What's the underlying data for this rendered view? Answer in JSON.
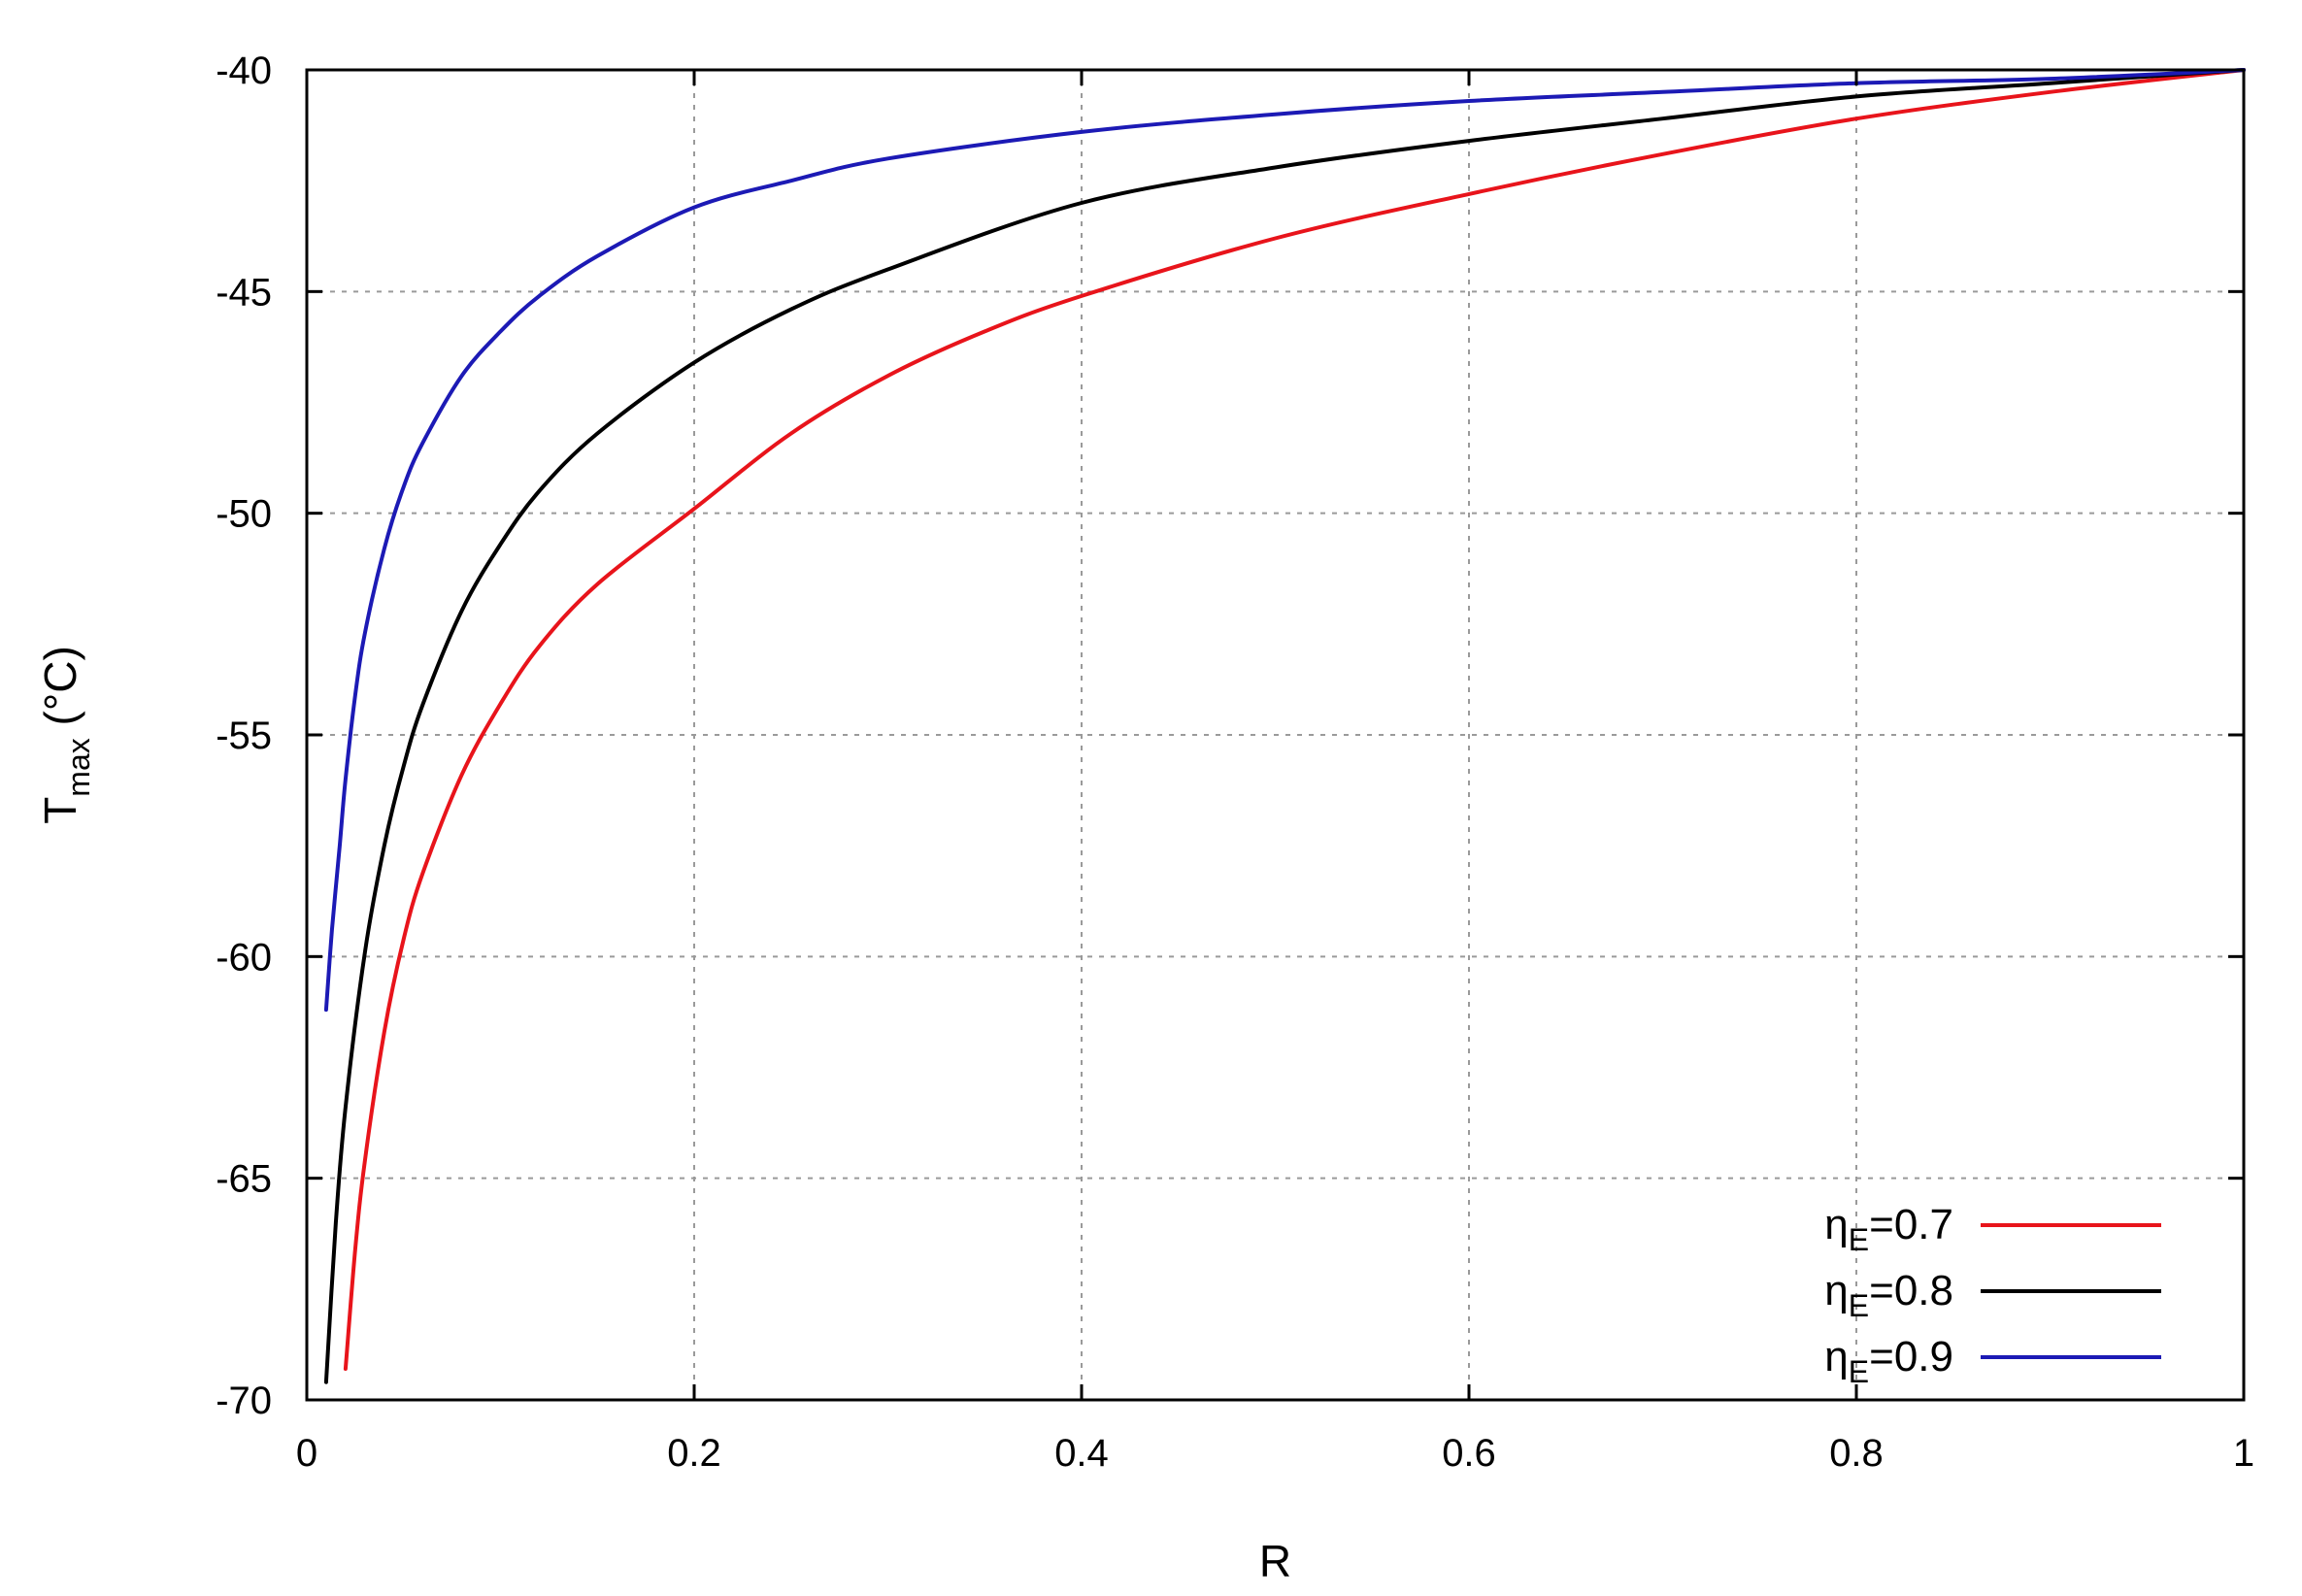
{
  "chart_data": {
    "type": "line",
    "title": "",
    "xlabel": "R",
    "ylabel": {
      "main": "T",
      "sub": "max",
      "unit": " (°C)"
    },
    "xlim": [
      0,
      1
    ],
    "ylim": [
      -70,
      -40
    ],
    "xticks": [
      0,
      0.2,
      0.4,
      0.6,
      0.8,
      1
    ],
    "xtick_labels": [
      "0",
      "0.2",
      "0.4",
      "0.6",
      "0.8",
      "1"
    ],
    "yticks": [
      -70,
      -65,
      -60,
      -55,
      -50,
      -45,
      -40
    ],
    "ytick_labels": [
      "-70",
      "-65",
      "-60",
      "-55",
      "-50",
      "-45",
      "-40"
    ],
    "grid": true,
    "legend_position": "bottom-right",
    "series": [
      {
        "legend": {
          "main": "η",
          "sub": "E",
          "rest": "=0.7"
        },
        "color": "#e8141b",
        "x": [
          0.02,
          0.025,
          0.03,
          0.04,
          0.05,
          0.06,
          0.08,
          0.1,
          0.12,
          0.15,
          0.2,
          0.25,
          0.3,
          0.35,
          0.4,
          0.5,
          0.6,
          0.7,
          0.8,
          0.9,
          1.0
        ],
        "y": [
          -69.3,
          -66.6,
          -64.6,
          -61.7,
          -59.6,
          -58.1,
          -55.9,
          -54.3,
          -53.0,
          -51.6,
          -49.9,
          -48.2,
          -46.9,
          -45.9,
          -45.1,
          -43.8,
          -42.8,
          -41.9,
          -41.1,
          -40.5,
          -40.0
        ]
      },
      {
        "legend": {
          "main": "η",
          "sub": "E",
          "rest": "=0.8"
        },
        "color": "#000000",
        "x": [
          0.01,
          0.015,
          0.02,
          0.03,
          0.04,
          0.05,
          0.06,
          0.08,
          0.1,
          0.12,
          0.15,
          0.2,
          0.25,
          0.3,
          0.4,
          0.5,
          0.6,
          0.7,
          0.8,
          0.9,
          1.0
        ],
        "y": [
          -69.6,
          -66.0,
          -63.4,
          -59.9,
          -57.5,
          -55.7,
          -54.3,
          -52.2,
          -50.7,
          -49.5,
          -48.2,
          -46.6,
          -45.4,
          -44.5,
          -43.0,
          -42.2,
          -41.6,
          -41.1,
          -40.6,
          -40.3,
          -40.0
        ]
      },
      {
        "legend": {
          "main": "η",
          "sub": "E",
          "rest": "=0.9"
        },
        "color": "#1c1ab5",
        "x": [
          0.01,
          0.013,
          0.017,
          0.02,
          0.025,
          0.03,
          0.04,
          0.05,
          0.06,
          0.08,
          0.1,
          0.12,
          0.15,
          0.2,
          0.25,
          0.3,
          0.4,
          0.5,
          0.6,
          0.7,
          0.8,
          0.9,
          1.0
        ],
        "y": [
          -61.2,
          -59.4,
          -57.5,
          -56.0,
          -54.1,
          -52.7,
          -50.8,
          -49.4,
          -48.4,
          -46.9,
          -45.9,
          -45.1,
          -44.2,
          -43.1,
          -42.5,
          -42.0,
          -41.4,
          -41.0,
          -40.7,
          -40.5,
          -40.3,
          -40.2,
          -40.0
        ]
      }
    ]
  }
}
